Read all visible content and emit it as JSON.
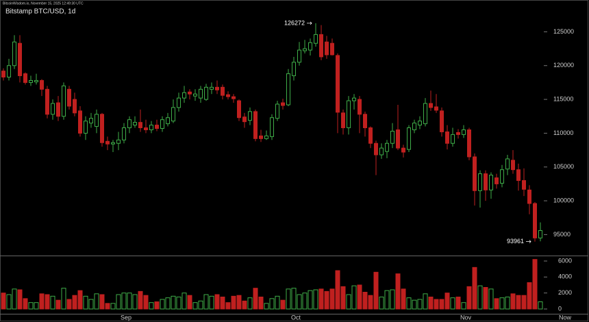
{
  "header": "BitcoinWisdom.io, November 15, 2025 12:49:30 UTC",
  "chart_data": {
    "type": "candlestick",
    "title": "Bitstamp BTC/USD, 1d",
    "categories": [
      null,
      null,
      null,
      null,
      null,
      null,
      null,
      null,
      null,
      null,
      null,
      null,
      null,
      null,
      null,
      null,
      null,
      null,
      null,
      null,
      null,
      null,
      "Sep",
      null,
      null,
      null,
      null,
      null,
      null,
      null,
      null,
      null,
      null,
      null,
      null,
      null,
      null,
      null,
      null,
      null,
      null,
      null,
      null,
      null,
      null,
      null,
      null,
      null,
      null,
      null,
      null,
      null,
      null,
      "Oct",
      null,
      null,
      null,
      null,
      null,
      null,
      null,
      null,
      null,
      null,
      null,
      null,
      null,
      null,
      null,
      null,
      null,
      null,
      null,
      null,
      null,
      null,
      null,
      null,
      null,
      null,
      null,
      null,
      null,
      null,
      "Nov",
      null,
      null,
      null,
      null,
      null,
      null,
      null,
      null,
      null,
      null,
      null,
      null,
      null,
      null
    ],
    "x_end_label": "Now",
    "open": [
      119200,
      118300,
      120000,
      123300,
      118800,
      117500,
      117600,
      117800,
      116500,
      112800,
      114500,
      112500,
      116500,
      115000,
      113300,
      110000,
      111500,
      111000,
      112800,
      108800,
      108400,
      108500,
      109000,
      110800,
      111200,
      111600,
      110800,
      110500,
      111200,
      110700,
      111400,
      111800,
      113800,
      115200,
      116100,
      115500,
      115200,
      115000,
      116500,
      116800,
      116800,
      115700,
      115400,
      114800,
      112400,
      111900,
      113200,
      109600,
      109200,
      109500,
      112200,
      114500,
      114200,
      118500,
      120500,
      122200,
      122300,
      123300,
      124600,
      123500,
      123300,
      121500,
      113000,
      110800,
      114800,
      115000,
      112800,
      110800,
      108500,
      106800,
      107300,
      108500,
      110500,
      107800,
      107600,
      110500,
      111200,
      111400,
      114400,
      113900,
      113300,
      110200,
      108500,
      110100,
      109800,
      110500,
      106500,
      101500,
      104000,
      101600,
      103400,
      102600,
      104700,
      106000,
      104600,
      103000,
      101600,
      99600,
      94500
    ],
    "high": [
      119600,
      121000,
      124500,
      124500,
      119000,
      118500,
      118800,
      118000,
      117000,
      115000,
      115500,
      117500,
      117000,
      116000,
      114000,
      112500,
      113000,
      113500,
      113000,
      109500,
      109000,
      110200,
      111500,
      112500,
      112500,
      113500,
      112000,
      111800,
      112000,
      112500,
      113000,
      115000,
      116000,
      117000,
      116500,
      116500,
      117000,
      117300,
      117500,
      117800,
      117200,
      116200,
      115800,
      115000,
      113000,
      113800,
      113500,
      110500,
      110400,
      112800,
      114800,
      115100,
      119500,
      121300,
      123500,
      123800,
      124000,
      126272,
      126000,
      124400,
      124000,
      121800,
      113500,
      115500,
      115800,
      115500,
      113200,
      111000,
      108900,
      108500,
      109000,
      111500,
      114200,
      108300,
      111200,
      112000,
      112500,
      115200,
      116300,
      115800,
      113800,
      111200,
      110800,
      110600,
      111200,
      110800,
      107000,
      104500,
      104500,
      104200,
      104000,
      105300,
      106800,
      107500,
      105500,
      104800,
      102300,
      99800,
      96800
    ],
    "low": [
      117800,
      117800,
      119500,
      117500,
      117200,
      117000,
      117200,
      115500,
      112200,
      112000,
      111800,
      112000,
      113500,
      112500,
      109500,
      109000,
      110800,
      110000,
      108000,
      107500,
      107200,
      107500,
      108500,
      110000,
      110800,
      110200,
      110000,
      110000,
      110300,
      110200,
      111000,
      111500,
      113200,
      114500,
      115000,
      114800,
      114500,
      114800,
      115800,
      115800,
      115000,
      115000,
      114500,
      111800,
      110800,
      111200,
      108800,
      108700,
      109000,
      109000,
      111800,
      113500,
      114000,
      117800,
      120000,
      121800,
      121500,
      122800,
      120800,
      121000,
      121500,
      110000,
      109800,
      109800,
      113500,
      110000,
      109500,
      107800,
      103800,
      106200,
      106300,
      107800,
      107500,
      106400,
      107200,
      110000,
      110600,
      111000,
      113300,
      113000,
      109500,
      107600,
      108000,
      109200,
      109300,
      106000,
      99300,
      99000,
      100000,
      100300,
      101800,
      102000,
      103800,
      104000,
      101500,
      100700,
      98000,
      93961,
      94000
    ],
    "close": [
      118300,
      120000,
      123500,
      118500,
      117500,
      117800,
      117800,
      116500,
      112800,
      114400,
      112500,
      117000,
      114000,
      113000,
      110000,
      111800,
      112200,
      112800,
      108600,
      108400,
      108600,
      109000,
      110800,
      112000,
      111600,
      110800,
      110500,
      111200,
      110700,
      112000,
      112300,
      113800,
      115200,
      116000,
      115800,
      115800,
      116500,
      116800,
      116800,
      116400,
      115600,
      115400,
      115100,
      112300,
      111700,
      113200,
      109200,
      109200,
      109600,
      112300,
      114300,
      114100,
      118800,
      120500,
      122300,
      122500,
      123400,
      124600,
      121300,
      121600,
      121600,
      113100,
      110800,
      114800,
      115200,
      112800,
      110800,
      108500,
      106800,
      107800,
      108500,
      110300,
      107800,
      107200,
      110800,
      111500,
      111800,
      114400,
      113800,
      113400,
      110200,
      108500,
      109800,
      109800,
      110500,
      106500,
      101500,
      104000,
      101600,
      103800,
      102500,
      104600,
      106200,
      104600,
      103000,
      101700,
      99600,
      94500,
      95600
    ],
    "volume": [
      2000,
      1800,
      2500,
      2400,
      1300,
      800,
      800,
      1900,
      1800,
      1600,
      1100,
      2600,
      1200,
      1700,
      2300,
      1600,
      1200,
      1900,
      1800,
      700,
      700,
      1800,
      2000,
      2000,
      1800,
      2200,
      1700,
      800,
      900,
      1200,
      1400,
      1600,
      1500,
      2000,
      1700,
      800,
      1000,
      1800,
      1600,
      1800,
      1500,
      800,
      1600,
      1700,
      1000,
      1400,
      2600,
      1500,
      700,
      1300,
      1600,
      1100,
      2500,
      2600,
      1800,
      2000,
      2300,
      2400,
      2500,
      2200,
      2500,
      4800,
      2800,
      1800,
      2900,
      3000,
      2100,
      1700,
      4600,
      1500,
      2300,
      2400,
      4400,
      2500,
      1400,
      1100,
      1200,
      1900,
      1500,
      1200,
      1200,
      2000,
      1400,
      1500,
      800,
      2800,
      5200,
      2900,
      2700,
      2500,
      1300,
      1400,
      1500,
      1900,
      1700,
      1700,
      3300,
      6200,
      900
    ],
    "up_color": "#3fae49",
    "down_color": "#c0201f",
    "ylim": [
      92000,
      129200
    ],
    "yticks": [
      95000,
      100000,
      105000,
      110000,
      115000,
      120000,
      125000
    ],
    "volume_ylim": [
      -600,
      6600
    ],
    "volume_yticks": [
      0,
      2000,
      4000,
      6000
    ]
  }
}
